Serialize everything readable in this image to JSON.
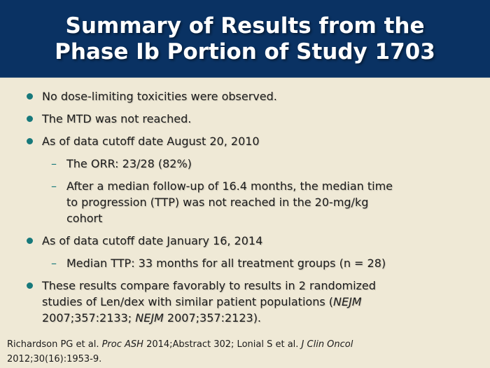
{
  "title": {
    "line1": "Summary of Results from the",
    "line2": "Phase Ib Portion of Study 1703"
  },
  "colors": {
    "header_bg": "#0a3263",
    "header_edge": "#4a6785",
    "body_bg": "#efe9d6",
    "accent_teal": "#17797b",
    "text": "#1b1b1b",
    "title_text": "#ffffff"
  },
  "markers": {
    "dash": "–"
  },
  "content": {
    "items": [
      {
        "type": "bullet",
        "lines": [
          [
            {
              "t": "No dose-limiting toxicities were observed."
            }
          ]
        ]
      },
      {
        "type": "bullet",
        "lines": [
          [
            {
              "t": "The MTD was not reached."
            }
          ]
        ]
      },
      {
        "type": "bullet",
        "lines": [
          [
            {
              "t": "As of data cutoff date August 20, 2010"
            }
          ]
        ]
      },
      {
        "type": "sub",
        "lines": [
          [
            {
              "t": "The ORR: 23/28 (82%)"
            }
          ]
        ]
      },
      {
        "type": "sub",
        "lines": [
          [
            {
              "t": "After a median follow-up of 16.4 months, the median time"
            }
          ],
          [
            {
              "t": "to progression (TTP) was not reached in the 20-mg/kg"
            }
          ],
          [
            {
              "t": "cohort"
            }
          ]
        ]
      },
      {
        "type": "bullet",
        "lines": [
          [
            {
              "t": "As of data cutoff date January 16, 2014"
            }
          ]
        ]
      },
      {
        "type": "sub",
        "lines": [
          [
            {
              "t": "Median TTP: 33 months for all treatment groups (n = 28)"
            }
          ]
        ]
      },
      {
        "type": "bullet",
        "lines": [
          [
            {
              "t": "These results compare favorably to results in 2 randomized"
            }
          ],
          [
            {
              "t": "studies of Len/dex with similar patient populations ("
            },
            {
              "t": "NEJM",
              "i": true
            }
          ],
          [
            {
              "t": "2007;357:2133; "
            },
            {
              "t": "NEJM",
              "i": true
            },
            {
              "t": " 2007;357:2123)."
            }
          ]
        ]
      }
    ]
  },
  "citation": {
    "lines": [
      [
        {
          "t": "Richardson PG et al. "
        },
        {
          "t": "Proc ASH",
          "i": true
        },
        {
          "t": " 2014;Abstract 302; Lonial S et al. "
        },
        {
          "t": "J Clin Oncol",
          "i": true
        }
      ],
      [
        {
          "t": "2012;30(16):1953-9."
        }
      ]
    ]
  }
}
